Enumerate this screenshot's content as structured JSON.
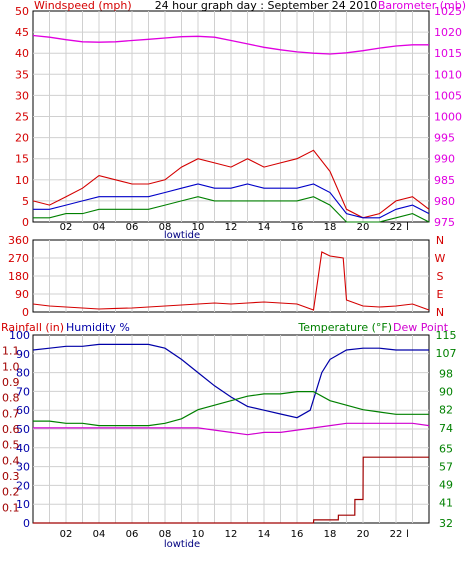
{
  "colors": {
    "background": "#ffffff",
    "frame": "#000000",
    "grid": "#d0d0d0",
    "windspeed": "#d40000",
    "barometer": "#e000e0",
    "wind_avg": "#0000c8",
    "gust_low": "#008000",
    "humidity": "#0000a8",
    "temperature": "#008000",
    "dew_point": "#d000d0",
    "rainfall": "#a00000",
    "wind_dir": "#d40000",
    "lowtide": "#000080"
  },
  "chart_data": [
    {
      "type": "line",
      "title": "24 hour graph day : September 24 2010",
      "legend_left": "Windspeed (mph)",
      "legend_right": "Barometer (mb)",
      "x_ticks": [
        "02",
        "04",
        "06",
        "08",
        "10",
        "12",
        "14",
        "16",
        "18",
        "20",
        "22",
        "l"
      ],
      "x_annotation": "lowtide",
      "xlim": [
        0,
        24
      ],
      "ylim": [
        0,
        50
      ],
      "y2lim": [
        975,
        1025
      ],
      "y_ticks": [
        "0",
        "5",
        "10",
        "15",
        "20",
        "25",
        "30",
        "35",
        "40",
        "45",
        "50"
      ],
      "y2_ticks": [
        "975",
        "980",
        "985",
        "990",
        "995",
        "1000",
        "1005",
        "1010",
        "1015",
        "1020",
        "1025"
      ],
      "grid": true,
      "series": [
        {
          "name": "Barometer (mb)",
          "axis": "right",
          "x": [
            0,
            1,
            2,
            3,
            4,
            5,
            6,
            7,
            8,
            9,
            10,
            11,
            12,
            13,
            14,
            15,
            16,
            17,
            18,
            19,
            20,
            21,
            22,
            23,
            24
          ],
          "values": [
            1019.2,
            1018.8,
            1018.2,
            1017.7,
            1017.6,
            1017.7,
            1018.0,
            1018.3,
            1018.6,
            1018.9,
            1019.0,
            1018.8,
            1018.0,
            1017.2,
            1016.4,
            1015.8,
            1015.3,
            1015.0,
            1014.8,
            1015.1,
            1015.6,
            1016.2,
            1016.7,
            1017.0,
            1017.0
          ]
        },
        {
          "name": "Windspeed (mph)",
          "axis": "left",
          "x": [
            0,
            1,
            2,
            3,
            4,
            5,
            6,
            7,
            8,
            9,
            10,
            11,
            12,
            13,
            14,
            15,
            16,
            17,
            18,
            19,
            20,
            21,
            22,
            23,
            24
          ],
          "values": [
            5,
            4,
            6,
            8,
            11,
            10,
            9,
            9,
            10,
            13,
            15,
            14,
            13,
            15,
            13,
            14,
            15,
            17,
            12,
            3,
            1,
            2,
            5,
            6,
            3
          ]
        },
        {
          "x": [
            0,
            1,
            2,
            3,
            4,
            5,
            6,
            7,
            8,
            9,
            10,
            11,
            12,
            13,
            14,
            15,
            16,
            17,
            18,
            19,
            20,
            21,
            22,
            23,
            24
          ],
          "values": [
            3,
            3,
            4,
            5,
            6,
            6,
            6,
            6,
            7,
            8,
            9,
            8,
            8,
            9,
            8,
            8,
            8,
            9,
            7,
            2,
            1,
            1,
            3,
            4,
            2
          ]
        },
        {
          "x": [
            0,
            1,
            2,
            3,
            4,
            5,
            6,
            7,
            8,
            9,
            10,
            11,
            12,
            13,
            14,
            15,
            16,
            17,
            18,
            19,
            20,
            21,
            22,
            23,
            24
          ],
          "values": [
            1,
            1,
            2,
            2,
            3,
            3,
            3,
            3,
            4,
            5,
            6,
            5,
            5,
            5,
            5,
            5,
            5,
            6,
            4,
            0,
            0,
            0,
            1,
            2,
            0
          ]
        }
      ]
    },
    {
      "type": "line",
      "legend_right": [
        "N",
        "W",
        "S",
        "E",
        "N"
      ],
      "xlim": [
        0,
        24
      ],
      "ylim": [
        0,
        360
      ],
      "y_ticks": [
        "0",
        "90",
        "180",
        "270",
        "360"
      ],
      "grid": true,
      "series": [
        {
          "x": [
            0,
            1,
            2,
            3,
            4,
            5,
            6,
            7,
            8,
            9,
            10,
            11,
            12,
            13,
            14,
            15,
            16,
            17,
            17.5,
            18,
            18.8,
            19,
            20,
            21,
            22,
            23,
            24
          ],
          "values": [
            40,
            30,
            25,
            20,
            15,
            18,
            20,
            25,
            30,
            35,
            40,
            45,
            40,
            45,
            50,
            45,
            40,
            10,
            300,
            280,
            270,
            60,
            30,
            25,
            30,
            40,
            10
          ]
        }
      ]
    },
    {
      "type": "line",
      "legend_left": [
        "Rainfall (in)",
        "Humidity %"
      ],
      "legend_right": [
        "Temperature (°F)",
        "Dew Point"
      ],
      "x_ticks": [
        "02",
        "04",
        "06",
        "08",
        "10",
        "12",
        "14",
        "16",
        "18",
        "20",
        "22",
        "l"
      ],
      "x_annotation": "lowtide",
      "xlim": [
        0,
        24
      ],
      "y_humidity_ticks": [
        "0",
        "10",
        "20",
        "30",
        "40",
        "50",
        "60",
        "70",
        "80",
        "90",
        "100"
      ],
      "y_rain_ticks": [
        "0.0",
        "0.1",
        "0.2",
        "0.3",
        "0.4",
        "0.5",
        "0.6",
        "0.7",
        "0.8",
        "0.9",
        "1.0",
        "1.1",
        "1.2"
      ],
      "y_temp_ticks": [
        "32",
        "41",
        "49",
        "57",
        "65",
        "74",
        "82",
        "90",
        "98",
        "107",
        "115"
      ],
      "humidity_lim": [
        0,
        100
      ],
      "rain_lim": [
        0,
        1.2
      ],
      "temp_lim": [
        32,
        115
      ],
      "grid": true,
      "series": [
        {
          "name": "Humidity %",
          "axis": "humidity",
          "x": [
            0,
            1,
            2,
            3,
            4,
            5,
            6,
            7,
            8,
            9,
            10,
            11,
            12,
            13,
            14,
            15,
            16,
            16.8,
            17.5,
            18,
            19,
            20,
            21,
            22,
            23,
            24
          ],
          "values": [
            92,
            93,
            94,
            94,
            95,
            95,
            95,
            95,
            93,
            87,
            80,
            73,
            67,
            62,
            60,
            58,
            56,
            60,
            80,
            87,
            92,
            93,
            93,
            92,
            92,
            92
          ]
        },
        {
          "name": "Temperature (°F)",
          "axis": "temp",
          "x": [
            0,
            1,
            2,
            3,
            4,
            5,
            6,
            7,
            8,
            9,
            10,
            11,
            12,
            13,
            14,
            15,
            16,
            17,
            18,
            19,
            20,
            21,
            22,
            23,
            24
          ],
          "values": [
            77,
            77,
            76,
            76,
            75,
            75,
            75,
            75,
            76,
            78,
            82,
            84,
            86,
            88,
            89,
            89,
            90,
            90,
            86,
            84,
            82,
            81,
            80,
            80,
            80
          ]
        },
        {
          "name": "Dew Point",
          "axis": "temp",
          "x": [
            0,
            1,
            2,
            3,
            4,
            5,
            6,
            7,
            8,
            9,
            10,
            11,
            12,
            13,
            14,
            15,
            16,
            17,
            18,
            19,
            20,
            21,
            22,
            23,
            24
          ],
          "values": [
            74,
            74,
            74,
            74,
            74,
            74,
            74,
            74,
            74,
            74,
            74,
            73,
            72,
            71,
            72,
            72,
            73,
            74,
            75,
            76,
            76,
            76,
            76,
            76,
            75
          ]
        },
        {
          "name": "Rainfall (in)",
          "axis": "rain",
          "x": [
            0,
            17,
            17.01,
            18.5,
            18.51,
            19.5,
            19.51,
            20,
            20.01,
            24
          ],
          "values": [
            0,
            0,
            0.02,
            0.02,
            0.05,
            0.05,
            0.15,
            0.15,
            0.42,
            0.42
          ]
        }
      ]
    }
  ]
}
